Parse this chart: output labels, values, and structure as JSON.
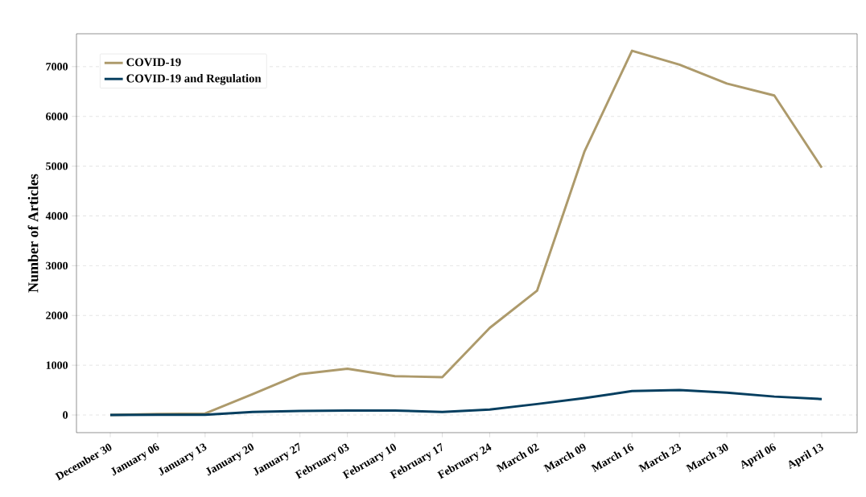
{
  "chart_data": {
    "type": "line",
    "ylabel": "Number of Articles",
    "categories": [
      "December 30",
      "January 06",
      "January 13",
      "January 20",
      "January 27",
      "February 03",
      "February 10",
      "February 17",
      "February 24",
      "March 02",
      "March 09",
      "March 16",
      "March 23",
      "March 30",
      "April 06",
      "April 13"
    ],
    "series": [
      {
        "name": "COVID-19",
        "color": "#ad9a6b",
        "values": [
          0,
          20,
          30,
          420,
          820,
          930,
          780,
          760,
          1750,
          2500,
          5300,
          7320,
          7040,
          6660,
          6420,
          4970
        ]
      },
      {
        "name": "COVID-19 and Regulation",
        "color": "#053e5f",
        "values": [
          0,
          5,
          5,
          60,
          80,
          90,
          90,
          60,
          110,
          220,
          340,
          480,
          500,
          450,
          370,
          320
        ]
      }
    ],
    "ylim": [
      -355,
      7660
    ],
    "yticks": [
      0,
      1000,
      2000,
      3000,
      4000,
      5000,
      6000,
      7000
    ],
    "grid": "y",
    "legend": "top left",
    "marker": "none",
    "line_style": "solid"
  }
}
